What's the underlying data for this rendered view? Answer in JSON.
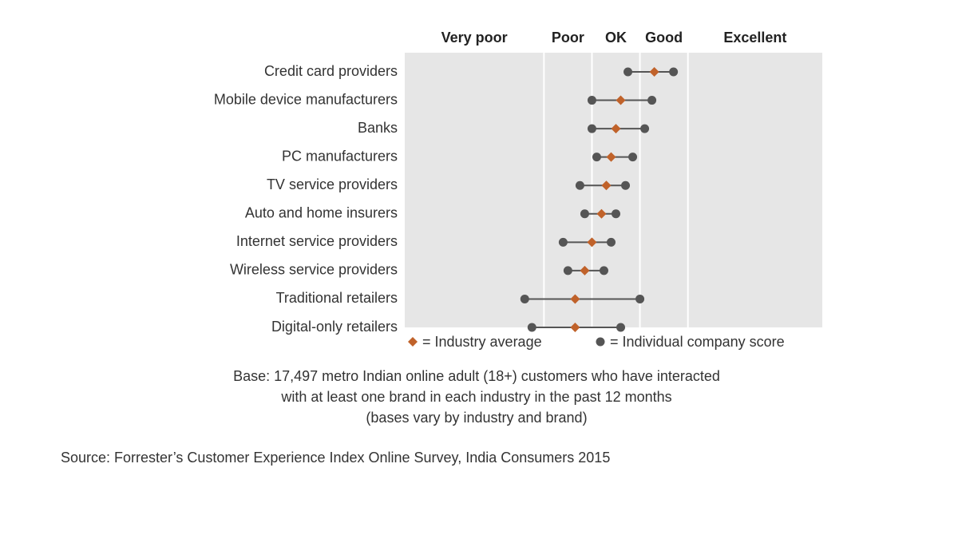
{
  "chart_data": {
    "type": "dot-range",
    "bands": [
      {
        "label": "Very poor",
        "from": 21,
        "to": 50
      },
      {
        "label": "Poor",
        "from": 50,
        "to": 60
      },
      {
        "label": "OK",
        "from": 60,
        "to": 70
      },
      {
        "label": "Good",
        "from": 70,
        "to": 80
      },
      {
        "label": "Excellent",
        "from": 80,
        "to": 108
      }
    ],
    "xlim": [
      21,
      108
    ],
    "categories": [
      "Credit card providers",
      "Mobile device manufacturers",
      "Banks",
      "PC manufacturers",
      "TV service providers",
      "Auto and home insurers",
      "Internet service providers",
      "Wireless service providers",
      "Traditional retailers",
      "Digital-only retailers"
    ],
    "series": [
      {
        "name": "= Industry average",
        "color": "#c0622a",
        "values": [
          73,
          66,
          65,
          64,
          63,
          62,
          60,
          58.5,
          56.5,
          56.5
        ]
      },
      {
        "name": "= Individual company score",
        "color": "#555555",
        "low": [
          67.5,
          60,
          60,
          61,
          57.5,
          58.5,
          54,
          55,
          46,
          47.5
        ],
        "high": [
          77,
          72.5,
          71,
          68.5,
          67,
          65,
          64,
          62.5,
          70,
          66
        ]
      }
    ],
    "notes": [
      "Base: 17,497 metro Indian online adult (18+) customers who have interacted",
      "with at least one brand in each industry in the past 12 months",
      "(bases vary by industry and brand)"
    ],
    "source": "Source: Forrester’s Customer Experience Index Online Survey, India Consumers 2015"
  }
}
